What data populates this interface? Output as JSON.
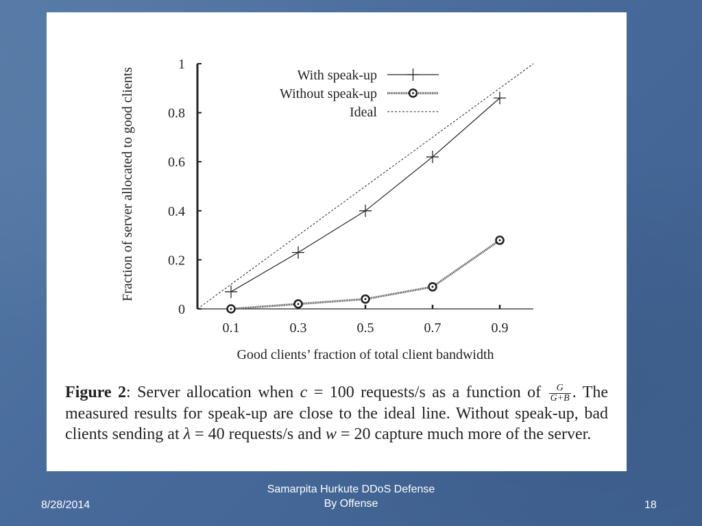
{
  "chart_data": {
    "type": "line",
    "xlabel": "Good clients’ fraction of total client bandwidth",
    "ylabel": "Fraction of server allocated to good clients",
    "x_ticks": [
      "0.1",
      "0.3",
      "0.5",
      "0.7",
      "0.9"
    ],
    "y_ticks": [
      "0",
      "0.2",
      "0.4",
      "0.6",
      "0.8",
      "1"
    ],
    "xlim": [
      0,
      1
    ],
    "ylim": [
      0,
      1
    ],
    "legend_position": "top-right",
    "grid": false,
    "series": [
      {
        "name": "With speak-up",
        "marker": "plus",
        "line_style": "solid",
        "x": [
          0.1,
          0.3,
          0.5,
          0.7,
          0.9
        ],
        "y": [
          0.07,
          0.23,
          0.4,
          0.62,
          0.86
        ]
      },
      {
        "name": "Without speak-up",
        "marker": "circle-dot",
        "line_style": "dotted-thick",
        "x": [
          0.1,
          0.3,
          0.5,
          0.7,
          0.9
        ],
        "y": [
          0.0,
          0.02,
          0.04,
          0.09,
          0.28
        ]
      },
      {
        "name": "Ideal",
        "marker": "none",
        "line_style": "dashed",
        "x": [
          0,
          1
        ],
        "y": [
          0,
          1
        ]
      }
    ]
  },
  "caption": {
    "label": "Figure 2",
    "part1": ": Server allocation when ",
    "c_symbol": "c",
    "part2": " = 100 requests/s as a function of ",
    "frac_num": "G",
    "frac_den": "G+B",
    "part3": ". The measured results for speak-up are close to the ideal line. Without speak-up, bad clients sending at ",
    "lambda_symbol": "λ",
    "part4": " = 40 requests/s and ",
    "w_symbol": "w",
    "part5": " = 20 capture much more of the server."
  },
  "footer": {
    "date": "8/28/2014",
    "center_line1": "Samarpita Hurkute DDoS Defense",
    "center_line2": "By Offense",
    "page_number": "18"
  },
  "colors": {
    "slide_background": "#4a6e9a",
    "panel": "#ffffff",
    "ink": "#222222",
    "footer_text": "#ffffff"
  }
}
